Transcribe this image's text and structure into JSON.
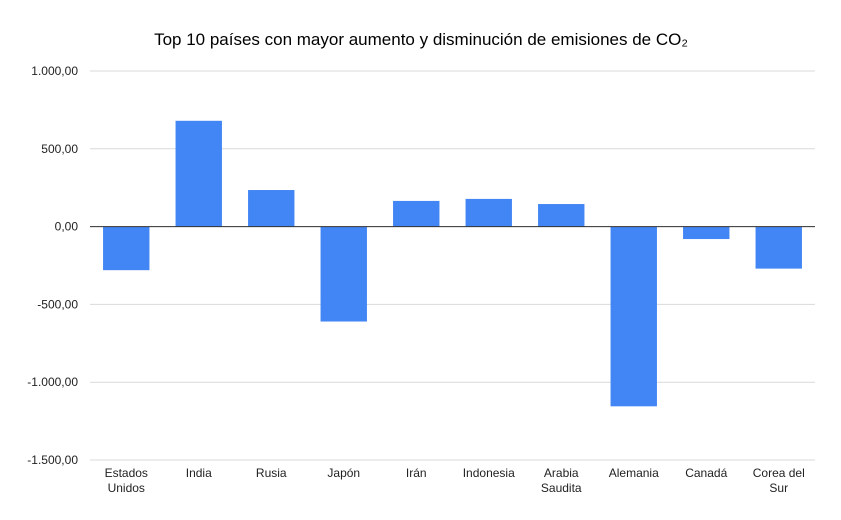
{
  "chart_data": {
    "type": "bar",
    "title": "Top 10 países con mayor aumento y disminución de emisiones de CO₂",
    "xlabel": "",
    "ylabel": "",
    "categories": [
      [
        "Estados",
        "Unidos"
      ],
      [
        "India"
      ],
      [
        "Rusia"
      ],
      [
        "Japón"
      ],
      [
        "Irán"
      ],
      [
        "Indonesia"
      ],
      [
        "Arabia",
        "Saudita"
      ],
      [
        "Alemania"
      ],
      [
        "Canadá"
      ],
      [
        "Corea del",
        "Sur"
      ]
    ],
    "values": [
      -280,
      680,
      235,
      -610,
      165,
      178,
      145,
      -1155,
      -80,
      -270
    ],
    "ylim": [
      -1500,
      1000
    ],
    "yticks": [
      1000,
      500,
      0,
      -500,
      -1000,
      -1500
    ],
    "ytick_labels": [
      "1.000,00",
      "500,00",
      "0,00",
      "-500,00",
      "-1.000,00",
      "-1.500,00"
    ],
    "grid": true,
    "legend": "none",
    "bar_color": "#4285f4"
  }
}
